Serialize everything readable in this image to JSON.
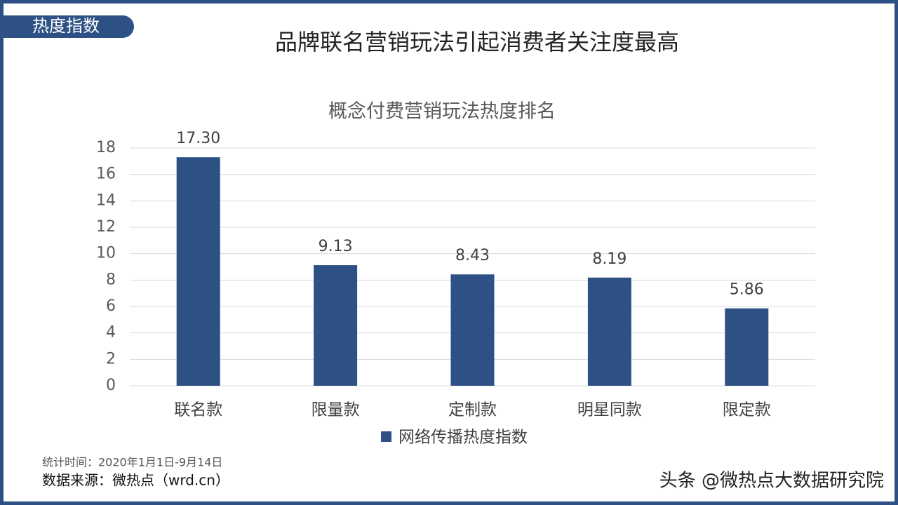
{
  "tag": "热度指数",
  "headline": "品牌联名营销玩法引起消费者关注度最高",
  "footer": {
    "period": "统计时间：2020年1月1日-9月14日",
    "source": "数据来源：微热点（wrd.cn）"
  },
  "watermark": "头条 @微热点大数据研究院",
  "chart_data": {
    "type": "bar",
    "title": "概念付费营销玩法热度排名",
    "categories": [
      "联名款",
      "限量款",
      "定制款",
      "明星同款",
      "限定款"
    ],
    "series": [
      {
        "name": "网络传播热度指数",
        "color": "#2e5185",
        "values": [
          17.3,
          9.13,
          8.43,
          8.19,
          5.86
        ],
        "value_labels": [
          "17.30",
          "9.13",
          "8.43",
          "8.19",
          "5.86"
        ]
      }
    ],
    "ylim": [
      0,
      18
    ],
    "yticks": [
      0,
      2,
      4,
      6,
      8,
      10,
      12,
      14,
      16,
      18
    ],
    "grid": true,
    "legend": "bottom"
  }
}
